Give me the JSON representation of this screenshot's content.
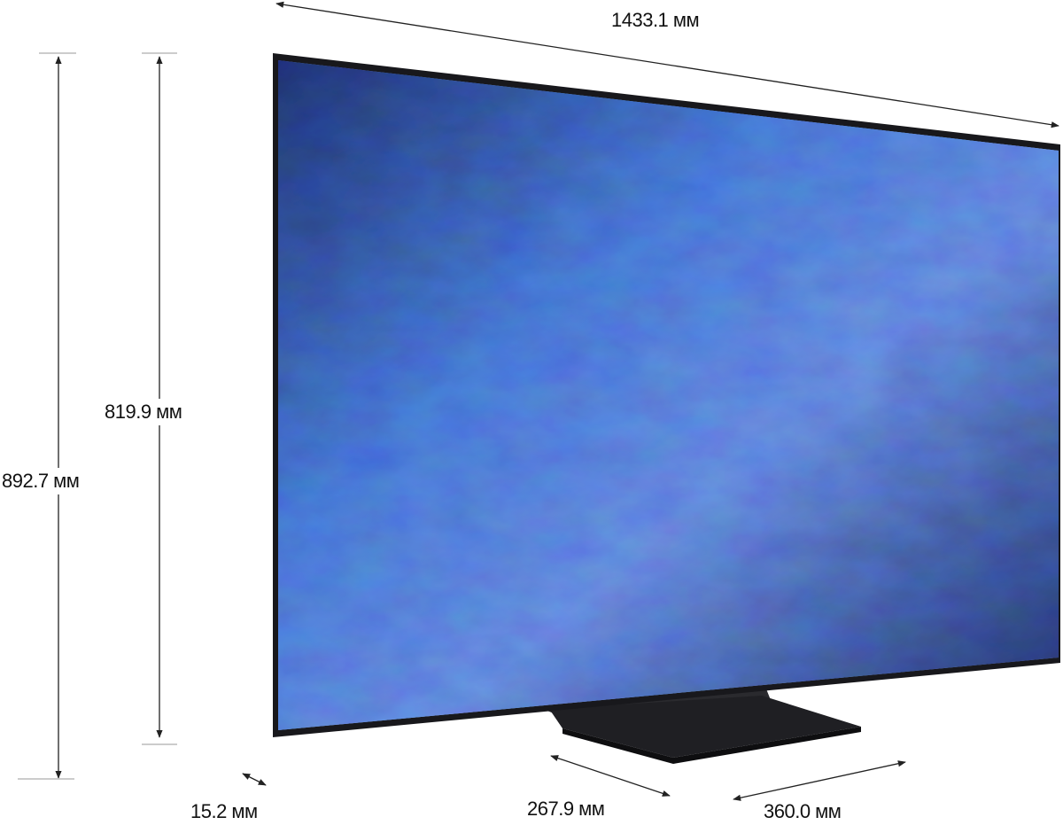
{
  "dimensions": {
    "width": "1433.1 мм",
    "screen_height": "819.9 мм",
    "total_height": "892.7 мм",
    "depth": "15.2 мм",
    "stand_depth": "267.9 мм",
    "stand_width": "360.0 мм"
  },
  "colors": {
    "screen_primary": "#4a78c8",
    "screen_dark": "#1c2a55",
    "bezel": "#1a1a1e",
    "stand": "#222226",
    "arrow": "#222222"
  }
}
